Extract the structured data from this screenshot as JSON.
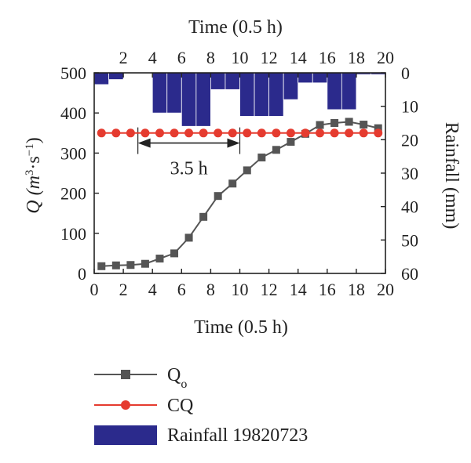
{
  "chart_data": {
    "type": "line",
    "x_axis": {
      "bottom_label": "Time (0.5 h)",
      "top_label": "Time (0.5 h)",
      "range": [
        0,
        20
      ],
      "bottom_ticks": [
        "0",
        "2",
        "4",
        "6",
        "8",
        "10",
        "12",
        "14",
        "16",
        "18",
        "20"
      ],
      "top_ticks": [
        "2",
        "4",
        "6",
        "8",
        "10",
        "12",
        "14",
        "16",
        "18",
        "20"
      ]
    },
    "y_left": {
      "label_main": "Q (m",
      "label_sup1": "3",
      "label_mid": "·s",
      "label_sup2": "−1",
      "label_end": ")",
      "range": [
        0,
        500
      ],
      "ticks": [
        "0",
        "100",
        "200",
        "300",
        "400",
        "500"
      ]
    },
    "y_right": {
      "label": "Rainfall (mm)",
      "range": [
        0,
        60
      ],
      "inverted": true,
      "ticks": [
        "0",
        "10",
        "20",
        "30",
        "40",
        "50",
        "60"
      ]
    },
    "series": [
      {
        "name": "Qo",
        "name_main": "Q",
        "name_sub": "o",
        "color": "#555555",
        "marker": "square",
        "x": [
          0,
          1,
          2,
          3,
          4,
          5,
          6,
          7,
          8,
          9,
          10,
          11,
          12,
          13,
          14,
          15,
          16,
          17,
          18,
          19
        ],
        "values": [
          18,
          20,
          21,
          24,
          37,
          50,
          89,
          141,
          193,
          224,
          257,
          289,
          308,
          328,
          348,
          370,
          375,
          378,
          371,
          362
        ]
      },
      {
        "name": "CQ",
        "color": "#e53b2f",
        "marker": "circle",
        "x": [
          0,
          1,
          2,
          3,
          4,
          5,
          6,
          7,
          8,
          9,
          10,
          11,
          12,
          13,
          14,
          15,
          16,
          17,
          18,
          19
        ],
        "values": [
          350,
          350,
          350,
          350,
          350,
          350,
          350,
          350,
          350,
          350,
          350,
          350,
          350,
          350,
          350,
          350,
          350,
          350,
          350,
          350
        ]
      }
    ],
    "rainfall": {
      "name": "Rainfall 19820723",
      "color": "#2b2a8c",
      "x": [
        0,
        1,
        2,
        3,
        4,
        5,
        6,
        7,
        8,
        9,
        10,
        11,
        12,
        13,
        14,
        15,
        16,
        17,
        18,
        19
      ],
      "values": [
        3.5,
        2,
        0,
        0,
        12,
        12,
        16,
        16,
        5,
        5,
        13,
        13,
        13,
        8,
        3,
        3,
        11,
        11,
        0.5,
        0.5
      ]
    },
    "annotation": {
      "text": "3.5 h",
      "x_start": 3,
      "x_end": 10,
      "y": 325
    },
    "legend": {
      "placement": "bottom",
      "items": [
        {
          "name_main": "Q",
          "name_sub": "o"
        },
        {
          "name_main": "CQ",
          "name_sub": ""
        },
        {
          "name_main": "Rainfall 19820723",
          "name_sub": ""
        }
      ]
    }
  }
}
